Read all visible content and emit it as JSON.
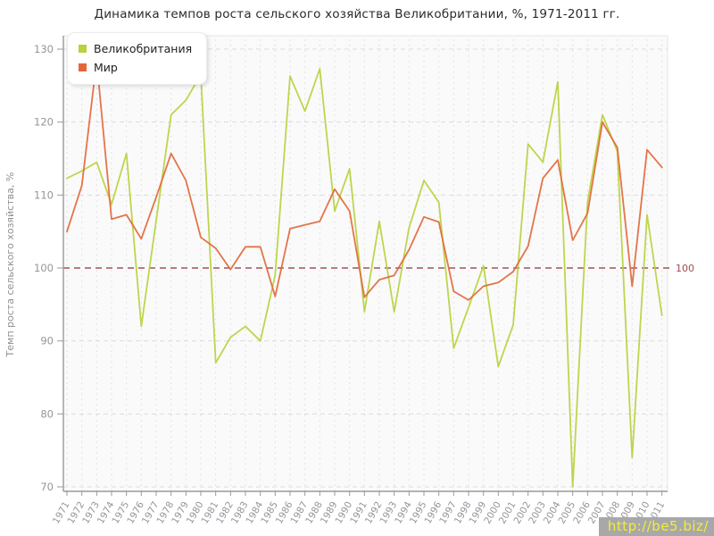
{
  "title": "Динамика темпов роста сельского хозяйства Великобритании, %, 1971-2011 гг.",
  "legend": {
    "items": [
      {
        "label": "Великобритания",
        "color": "#b7d23e"
      },
      {
        "label": "Мир",
        "color": "#e2683a"
      }
    ]
  },
  "y_axis": {
    "title": "Темп роста сельского хозяйства, %",
    "min": 70,
    "max": 130,
    "step": 10
  },
  "baseline": {
    "value": 100,
    "label": "100",
    "line_color": "#8e323c",
    "label_color": "#a34a52"
  },
  "watermark": {
    "text": "http://be5.biz/",
    "bg": "#a8a8a8",
    "color": "#f0ee3a"
  },
  "colors": {
    "grid_h": "#dcdcdc",
    "grid_v": "#e2e2e2",
    "axis": "#9a9a9a",
    "tick_label": "#94959c",
    "plot_bg": "#fafafa",
    "plot_border": "#e6e6e6"
  },
  "chart_data": {
    "type": "line",
    "title": "Динамика темпов роста сельского хозяйства Великобритании, %, 1971-2011 гг.",
    "xlabel": "",
    "ylabel": "Темп роста сельского хозяйства, %",
    "ylim": [
      70,
      130
    ],
    "grid": true,
    "legend_position": "top-left",
    "x": [
      1971,
      1972,
      1973,
      1974,
      1975,
      1976,
      1977,
      1978,
      1979,
      1980,
      1981,
      1982,
      1983,
      1984,
      1985,
      1986,
      1987,
      1988,
      1989,
      1990,
      1991,
      1992,
      1993,
      1994,
      1995,
      1996,
      1997,
      1998,
      1999,
      2000,
      2001,
      2002,
      2003,
      2004,
      2005,
      2006,
      2007,
      2008,
      2009,
      2010,
      2011
    ],
    "series": [
      {
        "name": "Великобритания",
        "color": "#b7d23e",
        "values": [
          112.3,
          113.3,
          114.5,
          108.7,
          115.7,
          92,
          106.5,
          121,
          123,
          126.5,
          87,
          90.5,
          92,
          90,
          99,
          126.3,
          121.5,
          127.3,
          107.8,
          113.6,
          94,
          106.4,
          94,
          105.5,
          112,
          109,
          89,
          94.6,
          100.3,
          86.5,
          92.2,
          117,
          114.5,
          125.5,
          70,
          109,
          121,
          116,
          74,
          107.3,
          93.5
        ]
      },
      {
        "name": "Мир",
        "color": "#e2683a",
        "values": [
          105,
          111.3,
          128.4,
          106.7,
          107.3,
          104,
          109.7,
          115.7,
          112,
          104.2,
          102.7,
          99.8,
          102.9,
          102.9,
          96.1,
          105.4,
          105.9,
          106.4,
          110.8,
          107.8,
          96,
          98.4,
          99,
          102.5,
          107,
          106.3,
          96.8,
          95.6,
          97.5,
          98,
          99.5,
          103,
          112.3,
          114.8,
          103.8,
          107.5,
          120,
          116.5,
          97.5,
          116.2,
          113.8
        ]
      }
    ],
    "baseline": 100
  }
}
